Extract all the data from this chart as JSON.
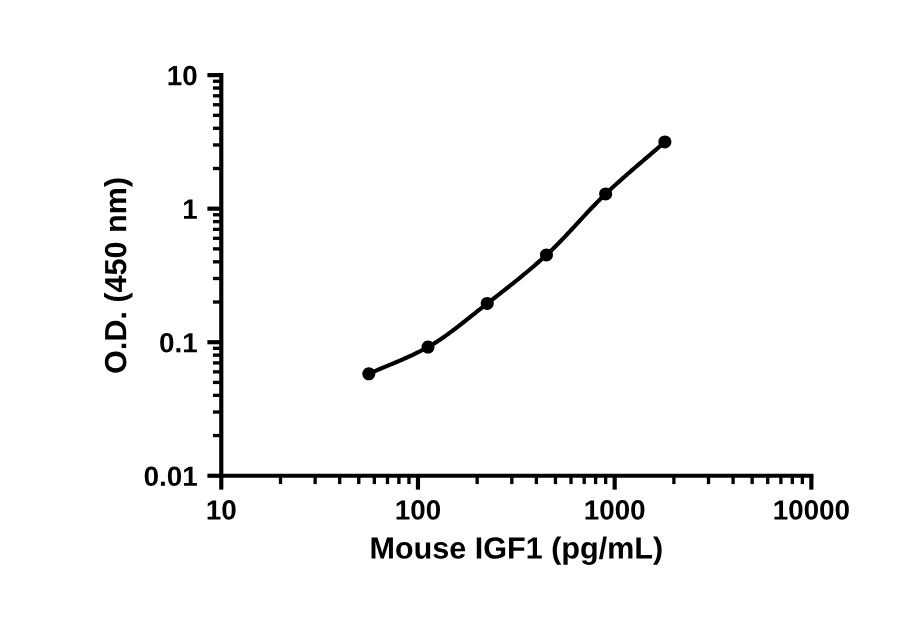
{
  "chart_data": {
    "type": "scatter",
    "xlabel": "Mouse IGF1 (pg/mL)",
    "ylabel": "O.D. (450 nm)",
    "log": "xy",
    "xlim": [
      10,
      10000
    ],
    "xticks": [
      10,
      100,
      1000,
      10000
    ],
    "ylim": [
      0.01,
      10
    ],
    "yticks": [
      0.01,
      0.1,
      1,
      10
    ],
    "grid": false,
    "series": [
      {
        "color": "#000000",
        "marker": "circle",
        "x": [
          56.25,
          112.5,
          225,
          450,
          900,
          1800
        ],
        "values": [
          0.058,
          0.092,
          0.195,
          0.45,
          1.29,
          3.16
        ]
      },
      {
        "type": "line",
        "color": "#000000",
        "line_style": "solid",
        "marker": "none",
        "x": [
          56.25,
          112.5,
          225,
          450,
          900,
          1800
        ],
        "values": [
          0.058,
          0.092,
          0.195,
          0.45,
          1.29,
          3.16
        ]
      }
    ]
  }
}
